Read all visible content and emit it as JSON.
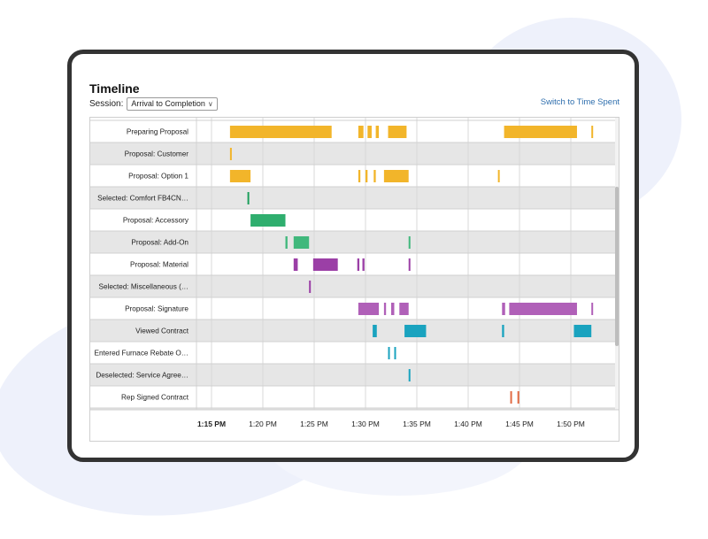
{
  "header": {
    "title": "Timeline",
    "session_label": "Session:",
    "session_value": "Arrival to Completion",
    "switch_link": "Switch to Time Spent"
  },
  "chart_data": {
    "type": "timeline",
    "x_ticks": [
      "1:15 PM",
      "1:20 PM",
      "1:25 PM",
      "1:30 PM",
      "1:35 PM",
      "1:40 PM",
      "1:45 PM",
      "1:50 PM"
    ],
    "xlim_minutes_after_1_15_PM": [
      0,
      41
    ],
    "grid": true,
    "rows": [
      {
        "label": "Preparing Proposal",
        "color": "#f2b52a",
        "segments": [
          [
            1.8,
            11.7
          ],
          [
            14.3,
            14.8
          ],
          [
            15.2,
            15.6
          ],
          [
            16.0,
            16.3
          ],
          [
            17.2,
            19.0
          ],
          [
            28.5,
            35.6
          ],
          [
            37.0,
            37.1
          ],
          [
            39.8,
            40.6
          ]
        ]
      },
      {
        "label": "Proposal: Customer",
        "color": "#f2b52a",
        "segments": [
          [
            1.8,
            1.9
          ]
        ]
      },
      {
        "label": "Proposal: Option 1",
        "color": "#f2b52a",
        "segments": [
          [
            1.8,
            3.8
          ],
          [
            14.3,
            14.5
          ],
          [
            15.0,
            15.2
          ],
          [
            15.8,
            16.0
          ],
          [
            16.8,
            19.2
          ],
          [
            27.9,
            28.0
          ]
        ]
      },
      {
        "label": "Selected: Comfort FB4CN…",
        "color": "#1b9e5a",
        "segments": [
          [
            3.5,
            3.6
          ]
        ]
      },
      {
        "label": "Proposal: Accessory",
        "color": "#2fae6e",
        "segments": [
          [
            3.8,
            7.2
          ]
        ]
      },
      {
        "label": "Proposal: Add-On",
        "color": "#40b87c",
        "segments": [
          [
            7.2,
            7.4
          ],
          [
            8.0,
            9.5
          ],
          [
            19.2,
            19.3
          ]
        ]
      },
      {
        "label": "Proposal: Material",
        "color": "#9b3fa6",
        "segments": [
          [
            8.0,
            8.4
          ],
          [
            9.9,
            12.3
          ],
          [
            14.2,
            14.4
          ],
          [
            14.7,
            14.9
          ],
          [
            19.2,
            19.3
          ]
        ]
      },
      {
        "label": "Selected: Miscellaneous (…",
        "color": "#9b3fa6",
        "segments": [
          [
            9.5,
            9.6
          ]
        ]
      },
      {
        "label": "Proposal: Signature",
        "color": "#b060b8",
        "segments": [
          [
            14.3,
            16.3
          ],
          [
            16.8,
            17.0
          ],
          [
            17.5,
            17.8
          ],
          [
            18.3,
            19.2
          ],
          [
            28.3,
            28.6
          ],
          [
            29.0,
            35.6
          ],
          [
            37.0,
            37.1
          ],
          [
            39.7,
            40.6
          ]
        ]
      },
      {
        "label": "Viewed Contract",
        "color": "#1aa3bf",
        "segments": [
          [
            15.7,
            16.1
          ],
          [
            18.8,
            20.9
          ],
          [
            28.3,
            28.5
          ],
          [
            35.3,
            37.0
          ]
        ]
      },
      {
        "label": "Entered Furnace Rebate O…",
        "color": "#1aa3bf",
        "segments": [
          [
            17.2,
            17.3
          ],
          [
            17.8,
            17.9
          ]
        ]
      },
      {
        "label": "Deselected: Service Agree…",
        "color": "#1aa3bf",
        "segments": [
          [
            19.2,
            19.3
          ]
        ]
      },
      {
        "label": "Rep Signed Contract",
        "color": "#e26a43",
        "segments": [
          [
            29.1,
            29.2
          ],
          [
            29.8,
            29.9
          ]
        ]
      },
      {
        "label": "",
        "color": "#e26a43",
        "segments": [
          [
            29.4,
            29.5
          ],
          [
            31.4,
            31.5
          ]
        ]
      }
    ]
  }
}
